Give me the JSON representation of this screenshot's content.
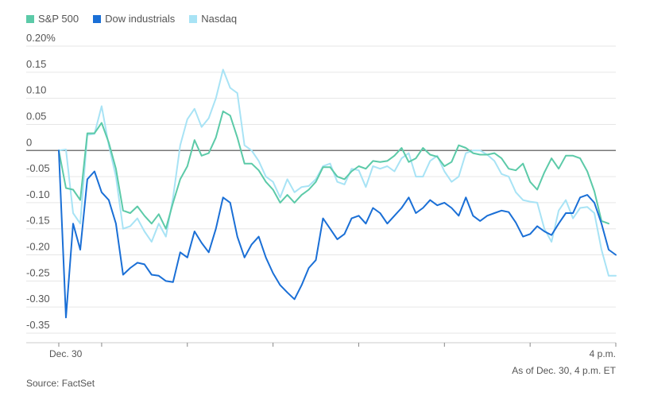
{
  "legend": {
    "items": [
      {
        "label": "S&P 500",
        "color": "#5ccaa8"
      },
      {
        "label": "Dow industrials",
        "color": "#1a6fd6"
      },
      {
        "label": "Nasdaq",
        "color": "#a8e3f5"
      }
    ]
  },
  "footnote": "As of Dec. 30, 4 p.m. ET",
  "source": "Source: FactSet",
  "chart_data": {
    "type": "line",
    "ylim": [
      -0.35,
      0.2
    ],
    "yticks": [
      {
        "value": 0.2,
        "label": "0.20%"
      },
      {
        "value": 0.15,
        "label": "0.15"
      },
      {
        "value": 0.1,
        "label": "0.10"
      },
      {
        "value": 0.05,
        "label": "0.05"
      },
      {
        "value": 0,
        "label": "0"
      },
      {
        "value": -0.05,
        "label": "-0.05"
      },
      {
        "value": -0.1,
        "label": "-0.10"
      },
      {
        "value": -0.15,
        "label": "-0.15"
      },
      {
        "value": -0.2,
        "label": "-0.20"
      },
      {
        "value": -0.25,
        "label": "-0.25"
      },
      {
        "value": -0.3,
        "label": "-0.30"
      },
      {
        "value": -0.35,
        "label": "-0.35"
      }
    ],
    "xlim": [
      0,
      78
    ],
    "xticks": [
      {
        "value": 0,
        "label": "Dec. 30"
      },
      {
        "value": 6,
        "label": ""
      },
      {
        "value": 18,
        "label": ""
      },
      {
        "value": 30,
        "label": ""
      },
      {
        "value": 42,
        "label": ""
      },
      {
        "value": 54,
        "label": ""
      },
      {
        "value": 66,
        "label": ""
      },
      {
        "value": 78,
        "label": "4 p.m."
      }
    ],
    "grid": true,
    "legend_position": "top-left",
    "series": [
      {
        "name": "S&P 500",
        "color": "#5ccaa8",
        "values": [
          0.0,
          -0.072,
          -0.075,
          -0.095,
          0.033,
          0.033,
          0.053,
          0.015,
          -0.035,
          -0.115,
          -0.12,
          -0.107,
          -0.125,
          -0.14,
          -0.122,
          -0.15,
          -0.1,
          -0.055,
          -0.03,
          0.02,
          -0.01,
          -0.005,
          0.025,
          0.075,
          0.067,
          0.025,
          -0.025,
          -0.025,
          -0.038,
          -0.06,
          -0.075,
          -0.1,
          -0.085,
          -0.1,
          -0.085,
          -0.075,
          -0.06,
          -0.032,
          -0.032,
          -0.05,
          -0.055,
          -0.04,
          -0.03,
          -0.035,
          -0.02,
          -0.022,
          -0.02,
          -0.01,
          0.005,
          -0.022,
          -0.015,
          0.005,
          -0.008,
          -0.012,
          -0.03,
          -0.022,
          0.01,
          0.005,
          -0.005,
          -0.008,
          -0.008,
          -0.005,
          -0.015,
          -0.035,
          -0.038,
          -0.025,
          -0.06,
          -0.075,
          -0.042,
          -0.015,
          -0.035,
          -0.01,
          -0.01,
          -0.015,
          -0.04,
          -0.078,
          -0.135,
          -0.14
        ]
      },
      {
        "name": "Dow industrials",
        "color": "#1a6fd6",
        "values": [
          0.0,
          -0.32,
          -0.14,
          -0.19,
          -0.055,
          -0.04,
          -0.08,
          -0.095,
          -0.14,
          -0.238,
          -0.225,
          -0.215,
          -0.218,
          -0.238,
          -0.24,
          -0.25,
          -0.252,
          -0.195,
          -0.205,
          -0.155,
          -0.177,
          -0.195,
          -0.15,
          -0.09,
          -0.1,
          -0.165,
          -0.205,
          -0.18,
          -0.165,
          -0.205,
          -0.235,
          -0.258,
          -0.272,
          -0.285,
          -0.258,
          -0.225,
          -0.21,
          -0.13,
          -0.15,
          -0.17,
          -0.16,
          -0.13,
          -0.125,
          -0.14,
          -0.11,
          -0.12,
          -0.14,
          -0.125,
          -0.11,
          -0.09,
          -0.12,
          -0.11,
          -0.095,
          -0.105,
          -0.1,
          -0.11,
          -0.125,
          -0.09,
          -0.125,
          -0.135,
          -0.125,
          -0.12,
          -0.115,
          -0.118,
          -0.138,
          -0.165,
          -0.16,
          -0.145,
          -0.155,
          -0.162,
          -0.14,
          -0.12,
          -0.12,
          -0.09,
          -0.085,
          -0.1,
          -0.14,
          -0.19,
          -0.2
        ]
      },
      {
        "name": "Nasdaq",
        "color": "#a8e3f5",
        "values": [
          0.0,
          0.002,
          -0.12,
          -0.14,
          0.03,
          0.032,
          0.085,
          0.01,
          -0.05,
          -0.15,
          -0.145,
          -0.13,
          -0.155,
          -0.175,
          -0.14,
          -0.165,
          -0.09,
          0.01,
          0.06,
          0.08,
          0.045,
          0.062,
          0.1,
          0.155,
          0.12,
          0.11,
          0.01,
          0.0,
          -0.02,
          -0.05,
          -0.06,
          -0.09,
          -0.055,
          -0.08,
          -0.07,
          -0.068,
          -0.055,
          -0.03,
          -0.025,
          -0.06,
          -0.065,
          -0.035,
          -0.038,
          -0.07,
          -0.03,
          -0.035,
          -0.03,
          -0.04,
          -0.015,
          -0.005,
          -0.05,
          -0.05,
          -0.02,
          -0.01,
          -0.04,
          -0.06,
          -0.05,
          -0.005,
          0.0,
          0.0,
          -0.008,
          -0.02,
          -0.045,
          -0.05,
          -0.08,
          -0.095,
          -0.098,
          -0.1,
          -0.15,
          -0.175,
          -0.115,
          -0.095,
          -0.13,
          -0.11,
          -0.108,
          -0.12,
          -0.19,
          -0.24,
          -0.24
        ]
      }
    ]
  }
}
